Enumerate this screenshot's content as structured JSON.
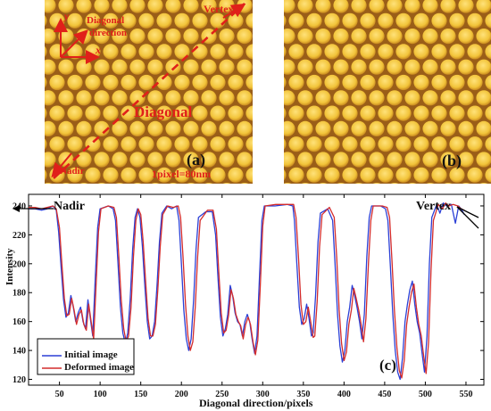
{
  "panels": {
    "a": {
      "letter": "(a)",
      "axis_y": "y",
      "axis_x": "x",
      "diag_word": "Diagonal",
      "diag_sub": "direction",
      "vertex": "Vertex",
      "nadir": "Nadir",
      "diagonal_big": "Diagonal",
      "scale": "1pixel=80nm"
    },
    "b": {
      "letter": "(b)"
    },
    "c": {
      "letter": "(c)"
    }
  },
  "colors": {
    "initial": "#2b3fd6",
    "deformed": "#d42c2c",
    "annot": "#e0201a",
    "dot": "#f2c43a",
    "background": "#9a5e18"
  },
  "chart_data": {
    "type": "line",
    "title": "",
    "xlabel": "Diagonal direction/pixels",
    "ylabel": "Intensity",
    "xlim": [
      12,
      572
    ],
    "ylim": [
      116,
      248
    ],
    "x_ticks": [
      50,
      100,
      150,
      200,
      250,
      300,
      350,
      400,
      450,
      500,
      550
    ],
    "y_ticks": [
      120,
      140,
      160,
      180,
      200,
      220,
      240
    ],
    "legend_position": "bottom-left",
    "annotations": [
      {
        "text": "Nadir",
        "x": 38,
        "y": 239
      },
      {
        "text": "Vertex",
        "x": 540,
        "y": 239
      }
    ],
    "series": [
      {
        "name": "Initial image",
        "color": "#2b3fd6",
        "points": [
          [
            12,
            238
          ],
          [
            20,
            238
          ],
          [
            28,
            237
          ],
          [
            35,
            238
          ],
          [
            42,
            240
          ],
          [
            46,
            237
          ],
          [
            49,
            222
          ],
          [
            52,
            198
          ],
          [
            55,
            175
          ],
          [
            58,
            163
          ],
          [
            61,
            166
          ],
          [
            64,
            178
          ],
          [
            67,
            170
          ],
          [
            70,
            160
          ],
          [
            73,
            166
          ],
          [
            76,
            170
          ],
          [
            79,
            160
          ],
          [
            82,
            155
          ],
          [
            85,
            175
          ],
          [
            88,
            162
          ],
          [
            91,
            150
          ],
          [
            94,
            190
          ],
          [
            97,
            225
          ],
          [
            100,
            238
          ],
          [
            110,
            240
          ],
          [
            116,
            238
          ],
          [
            119,
            230
          ],
          [
            122,
            200
          ],
          [
            125,
            170
          ],
          [
            128,
            152
          ],
          [
            131,
            145
          ],
          [
            134,
            152
          ],
          [
            137,
            175
          ],
          [
            140,
            210
          ],
          [
            143,
            232
          ],
          [
            146,
            238
          ],
          [
            149,
            232
          ],
          [
            152,
            212
          ],
          [
            155,
            185
          ],
          [
            158,
            160
          ],
          [
            161,
            148
          ],
          [
            164,
            150
          ],
          [
            167,
            160
          ],
          [
            170,
            185
          ],
          [
            173,
            215
          ],
          [
            176,
            235
          ],
          [
            182,
            240
          ],
          [
            188,
            238
          ],
          [
            194,
            240
          ],
          [
            197,
            230
          ],
          [
            200,
            200
          ],
          [
            203,
            168
          ],
          [
            206,
            148
          ],
          [
            209,
            140
          ],
          [
            212,
            148
          ],
          [
            215,
            175
          ],
          [
            218,
            210
          ],
          [
            221,
            232
          ],
          [
            230,
            236
          ],
          [
            238,
            236
          ],
          [
            242,
            220
          ],
          [
            245,
            190
          ],
          [
            248,
            163
          ],
          [
            251,
            150
          ],
          [
            254,
            155
          ],
          [
            257,
            165
          ],
          [
            260,
            185
          ],
          [
            263,
            178
          ],
          [
            266,
            166
          ],
          [
            269,
            160
          ],
          [
            272,
            158
          ],
          [
            275,
            150
          ],
          [
            278,
            160
          ],
          [
            281,
            165
          ],
          [
            284,
            160
          ],
          [
            287,
            148
          ],
          [
            290,
            138
          ],
          [
            293,
            150
          ],
          [
            296,
            190
          ],
          [
            299,
            230
          ],
          [
            302,
            240
          ],
          [
            315,
            240
          ],
          [
            330,
            241
          ],
          [
            337,
            240
          ],
          [
            339,
            230
          ],
          [
            342,
            200
          ],
          [
            345,
            170
          ],
          [
            348,
            158
          ],
          [
            351,
            162
          ],
          [
            354,
            172
          ],
          [
            357,
            162
          ],
          [
            360,
            150
          ],
          [
            362,
            152
          ],
          [
            365,
            178
          ],
          [
            368,
            215
          ],
          [
            371,
            235
          ],
          [
            380,
            238
          ],
          [
            386,
            230
          ],
          [
            389,
            200
          ],
          [
            392,
            165
          ],
          [
            395,
            143
          ],
          [
            398,
            132
          ],
          [
            401,
            140
          ],
          [
            404,
            160
          ],
          [
            407,
            170
          ],
          [
            410,
            185
          ],
          [
            413,
            178
          ],
          [
            416,
            170
          ],
          [
            419,
            160
          ],
          [
            422,
            148
          ],
          [
            425,
            165
          ],
          [
            428,
            205
          ],
          [
            431,
            232
          ],
          [
            434,
            240
          ],
          [
            445,
            240
          ],
          [
            451,
            238
          ],
          [
            454,
            230
          ],
          [
            457,
            198
          ],
          [
            460,
            165
          ],
          [
            463,
            140
          ],
          [
            466,
            125
          ],
          [
            469,
            120
          ],
          [
            472,
            135
          ],
          [
            475,
            160
          ],
          [
            478,
            172
          ],
          [
            481,
            182
          ],
          [
            484,
            188
          ],
          [
            487,
            172
          ],
          [
            490,
            160
          ],
          [
            493,
            152
          ],
          [
            496,
            138
          ],
          [
            499,
            125
          ],
          [
            502,
            150
          ],
          [
            505,
            200
          ],
          [
            508,
            232
          ],
          [
            514,
            241
          ],
          [
            518,
            235
          ],
          [
            522,
            242
          ],
          [
            526,
            240
          ],
          [
            532,
            241
          ],
          [
            537,
            228
          ],
          [
            541,
            240
          ],
          [
            544,
            238
          ],
          [
            548,
            234
          ]
        ]
      },
      {
        "name": "Deformed image",
        "color": "#d42c2c",
        "points": [
          [
            12,
            239
          ],
          [
            20,
            239
          ],
          [
            28,
            238
          ],
          [
            35,
            239
          ],
          [
            42,
            240
          ],
          [
            46,
            238
          ],
          [
            50,
            225
          ],
          [
            53,
            200
          ],
          [
            56,
            176
          ],
          [
            59,
            164
          ],
          [
            62,
            165
          ],
          [
            65,
            176
          ],
          [
            68,
            168
          ],
          [
            71,
            158
          ],
          [
            74,
            165
          ],
          [
            77,
            168
          ],
          [
            80,
            158
          ],
          [
            83,
            154
          ],
          [
            86,
            172
          ],
          [
            89,
            160
          ],
          [
            92,
            148
          ],
          [
            95,
            185
          ],
          [
            98,
            222
          ],
          [
            101,
            238
          ],
          [
            110,
            240
          ],
          [
            117,
            239
          ],
          [
            120,
            232
          ],
          [
            123,
            205
          ],
          [
            126,
            175
          ],
          [
            129,
            155
          ],
          [
            132,
            146
          ],
          [
            135,
            150
          ],
          [
            138,
            170
          ],
          [
            141,
            205
          ],
          [
            144,
            230
          ],
          [
            147,
            238
          ],
          [
            150,
            234
          ],
          [
            153,
            215
          ],
          [
            156,
            188
          ],
          [
            159,
            162
          ],
          [
            162,
            150
          ],
          [
            165,
            150
          ],
          [
            168,
            158
          ],
          [
            171,
            182
          ],
          [
            174,
            212
          ],
          [
            177,
            234
          ],
          [
            183,
            240
          ],
          [
            190,
            239
          ],
          [
            196,
            240
          ],
          [
            199,
            232
          ],
          [
            202,
            205
          ],
          [
            205,
            172
          ],
          [
            208,
            150
          ],
          [
            211,
            140
          ],
          [
            214,
            146
          ],
          [
            217,
            170
          ],
          [
            220,
            205
          ],
          [
            223,
            230
          ],
          [
            232,
            237
          ],
          [
            239,
            237
          ],
          [
            243,
            224
          ],
          [
            246,
            194
          ],
          [
            249,
            166
          ],
          [
            252,
            152
          ],
          [
            255,
            154
          ],
          [
            258,
            164
          ],
          [
            261,
            182
          ],
          [
            264,
            176
          ],
          [
            267,
            165
          ],
          [
            270,
            160
          ],
          [
            273,
            157
          ],
          [
            276,
            148
          ],
          [
            279,
            158
          ],
          [
            282,
            163
          ],
          [
            285,
            158
          ],
          [
            288,
            146
          ],
          [
            291,
            137
          ],
          [
            294,
            147
          ],
          [
            297,
            185
          ],
          [
            300,
            226
          ],
          [
            303,
            240
          ],
          [
            316,
            241
          ],
          [
            331,
            241
          ],
          [
            338,
            241
          ],
          [
            341,
            232
          ],
          [
            344,
            204
          ],
          [
            347,
            172
          ],
          [
            350,
            158
          ],
          [
            353,
            160
          ],
          [
            356,
            170
          ],
          [
            359,
            160
          ],
          [
            362,
            149
          ],
          [
            364,
            150
          ],
          [
            367,
            174
          ],
          [
            370,
            212
          ],
          [
            373,
            234
          ],
          [
            382,
            239
          ],
          [
            388,
            232
          ],
          [
            391,
            204
          ],
          [
            394,
            168
          ],
          [
            397,
            145
          ],
          [
            400,
            133
          ],
          [
            403,
            139
          ],
          [
            406,
            158
          ],
          [
            409,
            168
          ],
          [
            412,
            183
          ],
          [
            415,
            176
          ],
          [
            418,
            168
          ],
          [
            421,
            158
          ],
          [
            424,
            146
          ],
          [
            427,
            162
          ],
          [
            430,
            200
          ],
          [
            433,
            230
          ],
          [
            436,
            240
          ],
          [
            447,
            240
          ],
          [
            453,
            239
          ],
          [
            456,
            232
          ],
          [
            459,
            202
          ],
          [
            462,
            168
          ],
          [
            465,
            142
          ],
          [
            468,
            126
          ],
          [
            471,
            121
          ],
          [
            474,
            133
          ],
          [
            477,
            158
          ],
          [
            480,
            170
          ],
          [
            483,
            180
          ],
          [
            486,
            186
          ],
          [
            489,
            170
          ],
          [
            492,
            158
          ],
          [
            495,
            150
          ],
          [
            498,
            136
          ],
          [
            501,
            124
          ],
          [
            504,
            146
          ],
          [
            507,
            195
          ],
          [
            510,
            230
          ],
          [
            516,
            241
          ],
          [
            521,
            238
          ],
          [
            525,
            242
          ],
          [
            529,
            240
          ],
          [
            534,
            241
          ],
          [
            540,
            240
          ],
          [
            544,
            238
          ],
          [
            548,
            237
          ]
        ]
      }
    ]
  }
}
